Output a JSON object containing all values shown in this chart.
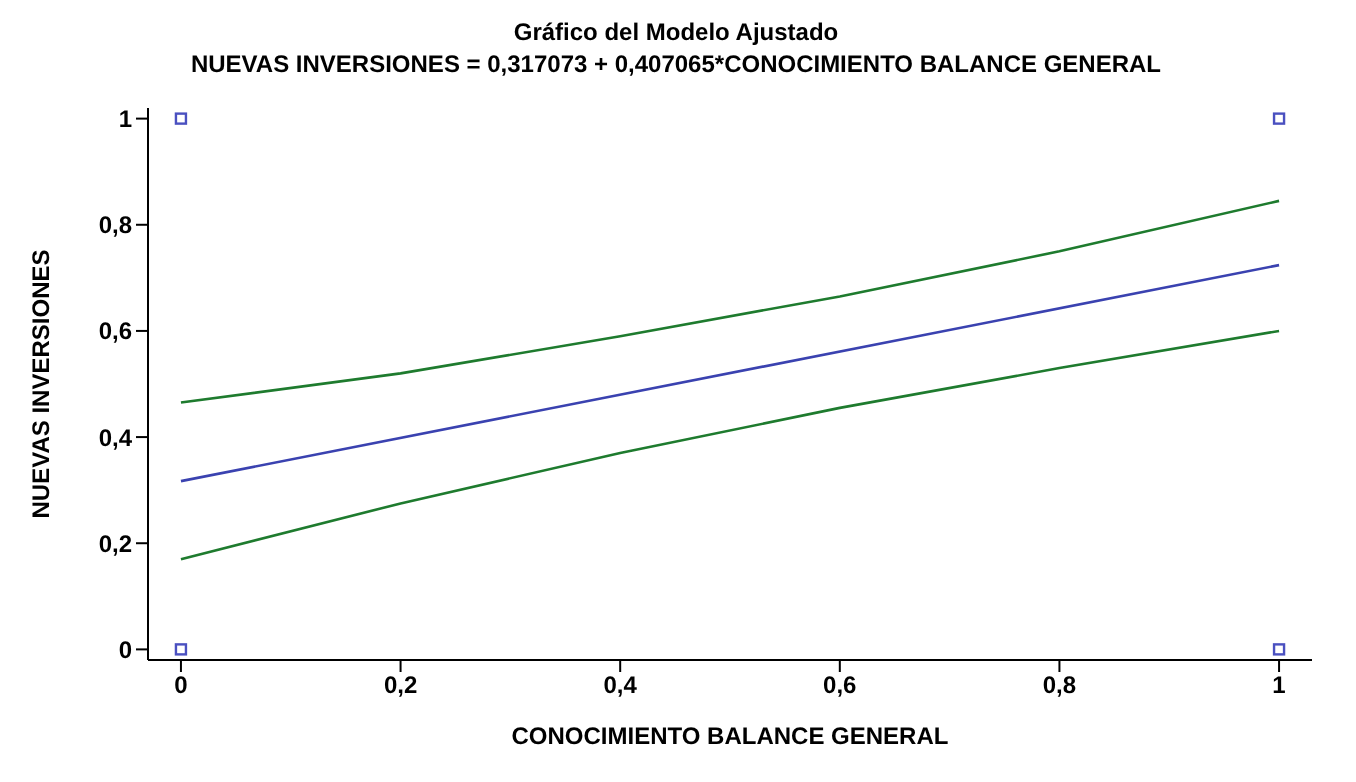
{
  "chart_data": {
    "type": "line",
    "title": "Gráfico del Modelo Ajustado",
    "subtitle": "NUEVAS INVERSIONES = 0,317073 + 0,407065*CONOCIMIENTO BALANCE GENERAL",
    "xlabel": "CONOCIMIENTO BALANCE GENERAL",
    "ylabel": "NUEVAS INVERSIONES",
    "xlim": [
      -0.03,
      1.03
    ],
    "ylim": [
      -0.02,
      1.02
    ],
    "xticks": [
      {
        "value": 0,
        "label": "0"
      },
      {
        "value": 0.2,
        "label": "0,2"
      },
      {
        "value": 0.4,
        "label": "0,4"
      },
      {
        "value": 0.6,
        "label": "0,6"
      },
      {
        "value": 0.8,
        "label": "0,8"
      },
      {
        "value": 1,
        "label": "1"
      }
    ],
    "yticks": [
      {
        "value": 0,
        "label": "0"
      },
      {
        "value": 0.2,
        "label": "0,2"
      },
      {
        "value": 0.4,
        "label": "0,4"
      },
      {
        "value": 0.6,
        "label": "0,6"
      },
      {
        "value": 0.8,
        "label": "0,8"
      },
      {
        "value": 1,
        "label": "1"
      }
    ],
    "grid": false,
    "marker": "none",
    "line_style": "solid",
    "series": [
      {
        "color": "#1e7b2e",
        "x": [
          0,
          0.2,
          0.4,
          0.6,
          0.8,
          1
        ],
        "values": [
          0.465,
          0.52,
          0.59,
          0.665,
          0.75,
          0.845
        ]
      },
      {
        "color": "#3a42b0",
        "x": [
          0,
          1
        ],
        "values": [
          0.317,
          0.724
        ]
      },
      {
        "color": "#1e7b2e",
        "x": [
          0,
          0.2,
          0.4,
          0.6,
          0.8,
          1
        ],
        "values": [
          0.17,
          0.275,
          0.37,
          0.455,
          0.53,
          0.6
        ]
      },
      {
        "type": "scatter",
        "color": "#4a50c0",
        "marker": "square",
        "x": [
          0,
          0,
          1,
          1
        ],
        "values": [
          0,
          1,
          0,
          1
        ]
      }
    ]
  }
}
